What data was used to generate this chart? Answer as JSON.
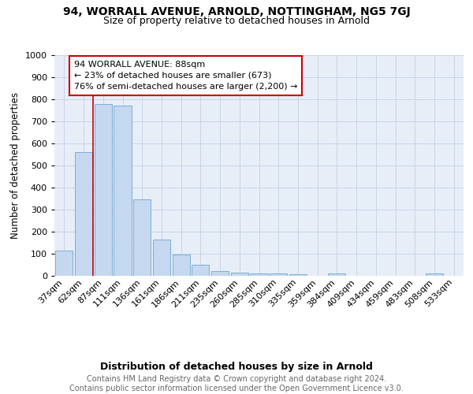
{
  "title1": "94, WORRALL AVENUE, ARNOLD, NOTTINGHAM, NG5 7GJ",
  "title2": "Size of property relative to detached houses in Arnold",
  "xlabel": "Distribution of detached houses by size in Arnold",
  "ylabel": "Number of detached properties",
  "categories": [
    "37sqm",
    "62sqm",
    "87sqm",
    "111sqm",
    "136sqm",
    "161sqm",
    "186sqm",
    "211sqm",
    "235sqm",
    "260sqm",
    "285sqm",
    "310sqm",
    "335sqm",
    "359sqm",
    "384sqm",
    "409sqm",
    "434sqm",
    "459sqm",
    "483sqm",
    "508sqm",
    "533sqm"
  ],
  "values": [
    113,
    560,
    778,
    770,
    345,
    163,
    98,
    50,
    22,
    15,
    12,
    10,
    8,
    0,
    10,
    0,
    0,
    0,
    0,
    10,
    0
  ],
  "bar_color": "#c5d8f0",
  "bar_edge_color": "#7bafd4",
  "grid_color": "#c8d4e8",
  "bg_color": "#e8eef8",
  "annotation_text": "94 WORRALL AVENUE: 88sqm\n← 23% of detached houses are smaller (673)\n76% of semi-detached houses are larger (2,200) →",
  "red_line_x": 2,
  "annotation_box_color": "#ffffff",
  "annotation_border_color": "#cc0000",
  "ylim": [
    0,
    1000
  ],
  "yticks": [
    0,
    100,
    200,
    300,
    400,
    500,
    600,
    700,
    800,
    900,
    1000
  ],
  "footnote": "Contains HM Land Registry data © Crown copyright and database right 2024.\nContains public sector information licensed under the Open Government Licence v3.0.",
  "title1_fontsize": 10,
  "title2_fontsize": 9,
  "xlabel_fontsize": 9,
  "ylabel_fontsize": 8.5,
  "tick_fontsize": 8,
  "annotation_fontsize": 8,
  "footnote_fontsize": 7
}
